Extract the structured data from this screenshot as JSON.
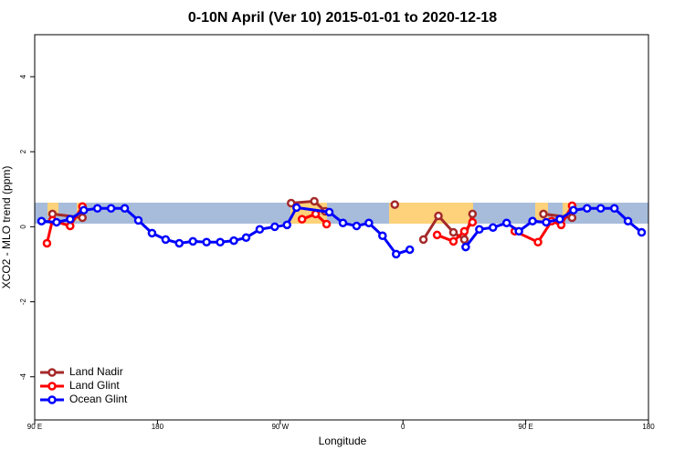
{
  "chart_data": {
    "type": "line",
    "title": "0-10N April (Ver 10)   2015-01-01 to 2020-12-18",
    "x_label": "Longitude",
    "y_label": "XCO2 - MLO trend (ppm)",
    "xlim": [
      90,
      540
    ],
    "ylim": [
      -5.15,
      5.12
    ],
    "xticks": [
      {
        "value": 90,
        "label": "90 E"
      },
      180,
      {
        "value": 270,
        "label": "90 W"
      },
      {
        "value": 360,
        "label": "0"
      },
      {
        "value": 450,
        "label": "90 E"
      },
      {
        "value": 540,
        "label": "180"
      }
    ],
    "yticks": [
      -4,
      -2,
      0,
      2,
      4
    ],
    "legend": "bottom-left",
    "series": [
      {
        "name": "Land Nadir",
        "color": "#a52a2a",
        "x": [
          103,
          125,
          null,
          278,
          295,
          303,
          null,
          354,
          null,
          375,
          386,
          397,
          405,
          411,
          null,
          463,
          484
        ],
        "values": [
          0.34,
          0.24,
          null,
          0.63,
          0.68,
          0.41,
          null,
          0.59,
          null,
          -0.34,
          0.29,
          -0.15,
          -0.34,
          0.34,
          null,
          0.34,
          0.24
        ]
      },
      {
        "name": "Land Glint",
        "color": "#ff0000",
        "x": [
          99,
          103,
          116,
          125,
          null,
          286,
          296,
          304,
          null,
          385,
          397,
          405,
          411,
          null,
          442,
          459,
          469,
          476,
          484
        ],
        "values": [
          -0.44,
          0.17,
          0.02,
          0.54,
          null,
          0.2,
          0.34,
          0.07,
          null,
          -0.22,
          -0.39,
          -0.12,
          0.12,
          null,
          -0.12,
          -0.41,
          0.15,
          0.05,
          0.56
        ]
      },
      {
        "name": "Ocean Glint",
        "color": "#0000ff",
        "x": [
          95,
          106,
          116,
          126,
          136,
          146,
          156,
          166,
          176,
          186,
          196,
          206,
          216,
          226,
          236,
          245,
          255,
          266,
          275,
          282,
          306,
          316,
          326,
          335,
          345,
          355,
          365,
          null,
          406,
          416,
          426,
          436,
          445,
          455,
          465,
          475,
          485,
          495,
          505,
          515,
          525,
          535
        ],
        "values": [
          0.15,
          0.12,
          0.2,
          0.44,
          0.49,
          0.49,
          0.49,
          0.17,
          -0.17,
          -0.34,
          -0.44,
          -0.39,
          -0.41,
          -0.41,
          -0.37,
          -0.29,
          -0.07,
          0,
          0.05,
          0.51,
          0.39,
          0.1,
          0.02,
          0.1,
          -0.24,
          -0.73,
          -0.61,
          null,
          -0.54,
          -0.07,
          -0.02,
          0.1,
          -0.12,
          0.15,
          0.12,
          0.2,
          0.44,
          0.49,
          0.49,
          0.49,
          0.15,
          -0.15
        ]
      }
    ]
  }
}
